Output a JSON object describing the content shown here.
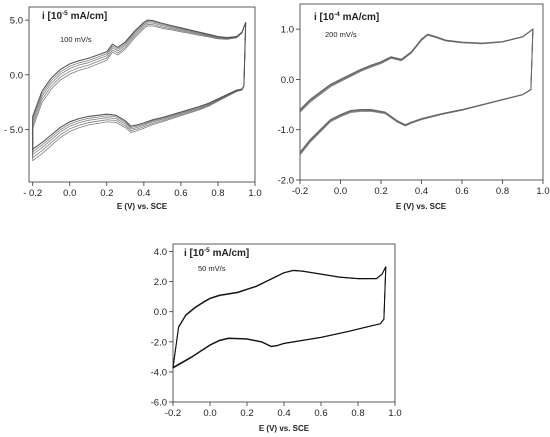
{
  "chart_data": [
    {
      "type": "line",
      "panel": "top-left",
      "ylabel_prefix": "i [10",
      "ylabel_exp": "-5",
      "ylabel_suffix": " mA/cm]",
      "scan_rate": "100 mV/s",
      "xlabel": "E (V) vs. SCE",
      "xlim": [
        -0.22,
        1.0
      ],
      "ylim": [
        -9.8,
        6.2
      ],
      "xticks": [
        -0.2,
        0.0,
        0.2,
        0.4,
        0.6,
        0.8,
        1.0
      ],
      "xtick_labels": [
        "- 0.2",
        "0.0",
        "0.2",
        "0.4",
        "0.6",
        "0.8",
        "1.0"
      ],
      "yticks": [
        5.0,
        0.0,
        -5.0
      ],
      "ytick_labels": [
        "5.0",
        "0.0",
        "- 5.0"
      ],
      "grid": false,
      "color": "#555555",
      "cycles": 5,
      "anodic": {
        "x": [
          -0.2,
          -0.15,
          -0.1,
          -0.05,
          0.0,
          0.05,
          0.1,
          0.15,
          0.2,
          0.23,
          0.26,
          0.3,
          0.35,
          0.4,
          0.42,
          0.45,
          0.5,
          0.55,
          0.6,
          0.65,
          0.7,
          0.75,
          0.8,
          0.85,
          0.9,
          0.93,
          0.95
        ],
        "y": [
          -3.8,
          -1.5,
          -0.3,
          0.5,
          1.0,
          1.3,
          1.5,
          1.8,
          2.1,
          2.8,
          2.5,
          3.0,
          4.0,
          4.8,
          5.0,
          4.95,
          4.7,
          4.5,
          4.3,
          4.1,
          3.9,
          3.7,
          3.5,
          3.4,
          3.5,
          3.9,
          4.8
        ]
      },
      "cathodic": {
        "x": [
          0.95,
          0.94,
          0.93,
          0.9,
          0.85,
          0.8,
          0.75,
          0.7,
          0.6,
          0.5,
          0.45,
          0.4,
          0.36,
          0.33,
          0.3,
          0.25,
          0.2,
          0.15,
          0.1,
          0.05,
          0.0,
          -0.05,
          -0.1,
          -0.15,
          -0.2
        ],
        "y": [
          4.8,
          -1.0,
          -1.3,
          -1.4,
          -1.8,
          -2.2,
          -2.6,
          -2.9,
          -3.4,
          -3.9,
          -4.1,
          -4.4,
          -4.6,
          -4.7,
          -4.2,
          -3.7,
          -3.6,
          -3.7,
          -3.8,
          -4.0,
          -4.3,
          -4.8,
          -5.5,
          -6.2,
          -6.8
        ]
      },
      "cycle_offsets": [
        0,
        0.25,
        0.5,
        0.8,
        1.1
      ]
    },
    {
      "type": "line",
      "panel": "top-right",
      "ylabel_prefix": "i [10",
      "ylabel_exp": "-4",
      "ylabel_suffix": " mA/cm]",
      "scan_rate": "200 mV/s",
      "xlabel": "E (V) vs. SCE",
      "xlim": [
        -0.2,
        1.0
      ],
      "ylim": [
        -2.0,
        1.5
      ],
      "xticks": [
        -0.2,
        0.0,
        0.2,
        0.4,
        0.6,
        0.8,
        1.0
      ],
      "xtick_labels": [
        "-0.2",
        "0.0",
        "0.2",
        "0.4",
        "0.6",
        "0.8",
        "1.0"
      ],
      "yticks": [
        1.0,
        0.0,
        -1.0,
        -2.0
      ],
      "ytick_labels": [
        "1.0",
        "0.0",
        "-1.0",
        "-2.0"
      ],
      "grid": false,
      "color": "#666666",
      "cycles": 5,
      "anodic": {
        "x": [
          -0.2,
          -0.15,
          -0.1,
          -0.05,
          0.0,
          0.05,
          0.1,
          0.15,
          0.2,
          0.25,
          0.3,
          0.35,
          0.4,
          0.43,
          0.47,
          0.52,
          0.6,
          0.7,
          0.8,
          0.9,
          0.95
        ],
        "y": [
          -0.6,
          -0.4,
          -0.25,
          -0.1,
          0.0,
          0.1,
          0.2,
          0.28,
          0.35,
          0.45,
          0.4,
          0.55,
          0.8,
          0.9,
          0.85,
          0.78,
          0.74,
          0.72,
          0.75,
          0.85,
          1.0
        ]
      },
      "cathodic": {
        "x": [
          0.95,
          0.94,
          0.9,
          0.8,
          0.7,
          0.6,
          0.5,
          0.4,
          0.35,
          0.32,
          0.28,
          0.22,
          0.15,
          0.1,
          0.05,
          0.0,
          -0.05,
          -0.1,
          -0.15,
          -0.2
        ],
        "y": [
          1.0,
          -0.2,
          -0.3,
          -0.4,
          -0.5,
          -0.6,
          -0.68,
          -0.78,
          -0.85,
          -0.9,
          -0.82,
          -0.65,
          -0.6,
          -0.6,
          -0.62,
          -0.7,
          -0.8,
          -1.0,
          -1.2,
          -1.45
        ]
      },
      "cycle_offsets": [
        0,
        0.06,
        0.12,
        0.18,
        0.26
      ]
    },
    {
      "type": "line",
      "panel": "bottom-center",
      "ylabel_prefix": "i [10",
      "ylabel_exp": "-5",
      "ylabel_suffix": " mA/cm]",
      "scan_rate": "50 mV/s",
      "xlabel": "E (V) vs. SCE",
      "xlim": [
        -0.2,
        1.0
      ],
      "ylim": [
        -6.0,
        4.5
      ],
      "xticks": [
        -0.2,
        0.0,
        0.2,
        0.4,
        0.6,
        0.8,
        1.0
      ],
      "xtick_labels": [
        "-0.2",
        "0.0",
        "0.2",
        "0.4",
        "0.6",
        "0.8",
        "1.0"
      ],
      "yticks": [
        4.0,
        2.0,
        0.0,
        -2.0,
        -4.0,
        -6.0
      ],
      "ytick_labels": [
        "4.0",
        "2.0",
        "0.0",
        "-2.0",
        "-4.0",
        "-6.0"
      ],
      "grid": false,
      "color": "#111111",
      "cycles": 3,
      "anodic": {
        "x": [
          -0.2,
          -0.17,
          -0.13,
          -0.08,
          -0.03,
          0.0,
          0.05,
          0.1,
          0.15,
          0.2,
          0.25,
          0.3,
          0.35,
          0.4,
          0.45,
          0.5,
          0.55,
          0.6,
          0.7,
          0.8,
          0.9,
          0.93,
          0.95
        ],
        "y": [
          -3.7,
          -1.0,
          -0.2,
          0.3,
          0.7,
          0.9,
          1.1,
          1.2,
          1.3,
          1.5,
          1.7,
          2.0,
          2.3,
          2.6,
          2.75,
          2.7,
          2.6,
          2.5,
          2.3,
          2.2,
          2.2,
          2.5,
          3.0
        ]
      },
      "cathodic": {
        "x": [
          0.95,
          0.94,
          0.92,
          0.85,
          0.75,
          0.6,
          0.5,
          0.4,
          0.36,
          0.33,
          0.28,
          0.2,
          0.1,
          0.05,
          0.0,
          -0.05,
          -0.1,
          -0.15,
          -0.2
        ],
        "y": [
          3.0,
          -0.5,
          -0.8,
          -1.0,
          -1.3,
          -1.7,
          -1.9,
          -2.1,
          -2.25,
          -2.3,
          -2.0,
          -1.8,
          -1.75,
          -1.9,
          -2.2,
          -2.6,
          -3.0,
          -3.35,
          -3.7
        ]
      },
      "cycle_offsets": [
        0,
        0.05,
        0.1
      ]
    }
  ]
}
